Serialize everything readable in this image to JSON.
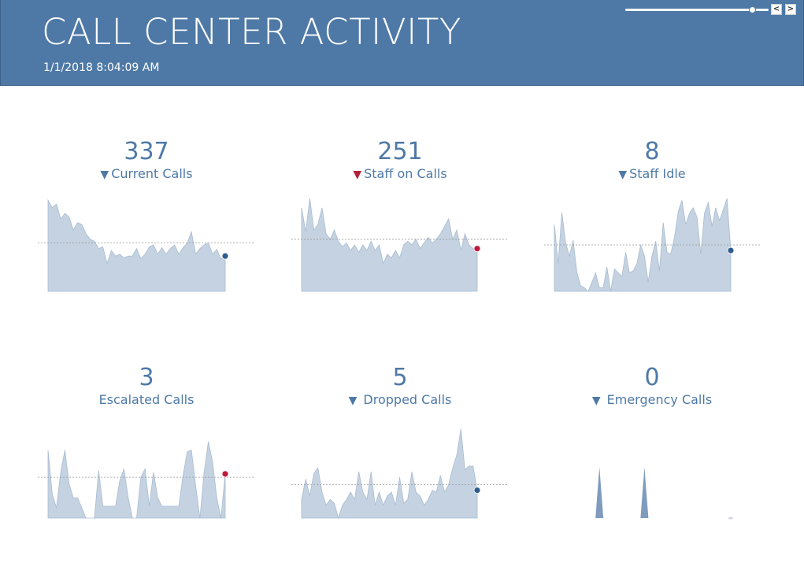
{
  "header": {
    "title": "CALL CENTER ACTIVITY",
    "timestamp": "1/1/2018 8:04:09 AM",
    "playback": {
      "position": 0.88,
      "prev_icon": "chevron-left-icon",
      "next_icon": "chevron-right-icon",
      "prev_glyph": "<",
      "next_glyph": ">"
    }
  },
  "colors": {
    "header_bg": "#4e79a7",
    "kpi_text": "#4e79a7",
    "area_fill": "#c4d2e1",
    "area_stroke": "#a9bcd1",
    "dot_blue": "#2f5e8e",
    "dot_red": "#c0183a",
    "reference_line": "#999999",
    "arrow_red": "#b5203b"
  },
  "kpis": [
    {
      "value": "337",
      "label": "Current Calls",
      "indicator": "down",
      "indicator_color": "#4e79a7",
      "indicator_glyph": "▼",
      "end_dot": "blue",
      "reference": 0.52,
      "series": [
        0.98,
        0.9,
        0.94,
        0.78,
        0.84,
        0.8,
        0.66,
        0.74,
        0.72,
        0.62,
        0.56,
        0.54,
        0.46,
        0.48,
        0.3,
        0.44,
        0.38,
        0.4,
        0.36,
        0.38,
        0.38,
        0.46,
        0.35,
        0.4,
        0.48,
        0.5,
        0.4,
        0.47,
        0.4,
        0.46,
        0.5,
        0.4,
        0.47,
        0.52,
        0.64,
        0.4,
        0.46,
        0.5,
        0.52,
        0.4,
        0.45,
        0.35,
        0.38
      ]
    },
    {
      "value": "251",
      "label": "Staff on Calls",
      "indicator": "down",
      "indicator_color": "#b5203b",
      "indicator_glyph": "▼",
      "end_dot": "red",
      "reference": 0.56,
      "series": [
        0.9,
        0.64,
        1.0,
        0.66,
        0.72,
        0.9,
        0.62,
        0.56,
        0.66,
        0.54,
        0.48,
        0.52,
        0.44,
        0.5,
        0.42,
        0.5,
        0.44,
        0.54,
        0.44,
        0.5,
        0.3,
        0.4,
        0.36,
        0.44,
        0.36,
        0.5,
        0.54,
        0.5,
        0.56,
        0.46,
        0.52,
        0.58,
        0.52,
        0.56,
        0.62,
        0.7,
        0.78,
        0.56,
        0.66,
        0.44,
        0.62,
        0.5,
        0.46,
        0.46
      ]
    },
    {
      "value": "8",
      "label": "Staff Idle",
      "indicator": "down",
      "indicator_color": "#4e79a7",
      "indicator_glyph": "▼",
      "end_dot": "blue",
      "reference": 0.5,
      "series": [
        0.72,
        0.3,
        0.85,
        0.52,
        0.38,
        0.55,
        0.2,
        0.06,
        0.04,
        0.0,
        0.1,
        0.2,
        0.04,
        0.04,
        0.26,
        0.0,
        0.24,
        0.2,
        0.16,
        0.42,
        0.2,
        0.22,
        0.3,
        0.5,
        0.38,
        0.1,
        0.38,
        0.54,
        0.22,
        0.74,
        0.42,
        0.4,
        0.58,
        0.86,
        0.98,
        0.72,
        0.84,
        0.9,
        0.8,
        0.4,
        0.84,
        0.96,
        0.7,
        0.9,
        0.76,
        0.88,
        1.0,
        0.44
      ]
    },
    {
      "value": "3",
      "label": "Escalated Calls",
      "indicator": "none",
      "indicator_color": "",
      "indicator_glyph": "",
      "end_dot": "red",
      "reference": 0.48,
      "series": [
        0.8,
        0.28,
        0.12,
        0.54,
        0.8,
        0.4,
        0.24,
        0.24,
        0.12,
        0.0,
        0.0,
        0.0,
        0.56,
        0.14,
        0.14,
        0.14,
        0.14,
        0.44,
        0.58,
        0.24,
        0.0,
        0.0,
        0.48,
        0.58,
        0.14,
        0.54,
        0.24,
        0.14,
        0.14,
        0.14,
        0.14,
        0.14,
        0.5,
        0.78,
        0.8,
        0.38,
        0.0,
        0.54,
        0.9,
        0.66,
        0.24,
        0.0,
        0.52
      ]
    },
    {
      "value": "5",
      "label": "Dropped Calls",
      "indicator": "down",
      "indicator_color": "#4e79a7",
      "indicator_glyph": "▼",
      "end_dot": "blue",
      "reference": 0.36,
      "series": [
        0.2,
        0.42,
        0.24,
        0.48,
        0.54,
        0.28,
        0.14,
        0.2,
        0.16,
        0.0,
        0.14,
        0.2,
        0.28,
        0.2,
        0.5,
        0.28,
        0.2,
        0.5,
        0.14,
        0.28,
        0.14,
        0.24,
        0.28,
        0.14,
        0.44,
        0.16,
        0.2,
        0.5,
        0.28,
        0.24,
        0.14,
        0.2,
        0.3,
        0.28,
        0.46,
        0.28,
        0.36,
        0.54,
        0.68,
        0.96,
        0.52,
        0.56,
        0.56,
        0.3
      ]
    },
    {
      "value": "0",
      "label": "Emergency Calls",
      "indicator": "down",
      "indicator_color": "#4e79a7",
      "indicator_glyph": "▼",
      "end_dot": "small-gray",
      "reference": -1,
      "series": [
        0,
        0,
        0,
        0,
        0,
        0,
        0,
        0,
        0,
        0,
        0,
        0,
        0.55,
        0,
        0,
        0,
        0,
        0,
        0,
        0,
        0,
        0,
        0,
        0,
        0.55,
        0,
        0,
        0,
        0,
        0,
        0,
        0,
        0,
        0,
        0,
        0,
        0,
        0,
        0,
        0,
        0,
        0,
        0,
        0,
        0,
        0,
        0,
        0
      ]
    }
  ]
}
